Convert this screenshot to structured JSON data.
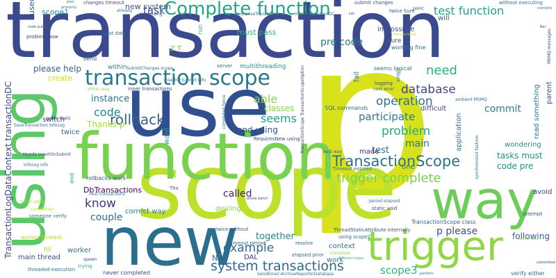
{
  "words": [
    {
      "text": "transaction",
      "color": "#3b4a8c",
      "vertical": false
    },
    {
      "text": "p",
      "color": "#d8e21c",
      "vertical": false
    },
    {
      "text": "scope",
      "color": "#bde02a",
      "vertical": false
    },
    {
      "text": "use",
      "color": "#2f4f8e",
      "vertical": false
    },
    {
      "text": "function",
      "color": "#79d150",
      "vertical": false
    },
    {
      "text": "new",
      "color": "#2b6e8e",
      "vertical": false
    },
    {
      "text": "using",
      "color": "#5cc86a",
      "vertical": true
    },
    {
      "text": "way",
      "color": "#6cce59",
      "vertical": false
    },
    {
      "text": "trigger",
      "color": "#8fd744",
      "vertical": false
    },
    {
      "text": "transaction scope",
      "color": "#2a788e",
      "vertical": false
    },
    {
      "text": "Complete function",
      "color": "#22a784",
      "vertical": false
    },
    {
      "text": "TransactionScope",
      "color": "#2c728e",
      "vertical": false
    },
    {
      "text": "trigger complete",
      "color": "#7ad151",
      "vertical": false
    },
    {
      "text": "system transactions",
      "color": "#31688e",
      "vertical": false
    },
    {
      "text": "TransactionLogDataContext transactionDC",
      "color": "#3e4a89",
      "vertical": true
    },
    {
      "text": "rollback",
      "color": "#35608d",
      "vertical": false
    },
    {
      "text": "database",
      "color": "#3f4788",
      "vertical": false
    },
    {
      "text": "operation",
      "color": "#2c728e",
      "vertical": false
    },
    {
      "text": "problem",
      "color": "#22a884",
      "vertical": false
    },
    {
      "text": "need",
      "color": "#2ab07f",
      "vertical": false
    },
    {
      "text": "know",
      "color": "#46337e",
      "vertical": false
    },
    {
      "text": "code",
      "color": "#24868e",
      "vertical": false
    },
    {
      "text": "able",
      "color": "#87d549",
      "vertical": false
    },
    {
      "text": "seems",
      "color": "#1f9e89",
      "vertical": false
    },
    {
      "text": "participate",
      "color": "#2a788e",
      "vertical": false
    },
    {
      "text": "example",
      "color": "#31688e",
      "vertical": false
    },
    {
      "text": "scope3",
      "color": "#2eb37c",
      "vertical": false
    },
    {
      "text": "task",
      "color": "#3b528b",
      "vertical": false
    },
    {
      "text": "test function",
      "color": "#1fa187",
      "vertical": false
    },
    {
      "text": "pre code",
      "color": "#2a778e",
      "vertical": false
    },
    {
      "text": "commit",
      "color": "#277f8e",
      "vertical": false
    },
    {
      "text": "main",
      "color": "#2c728e",
      "vertical": false
    },
    {
      "text": "test",
      "color": "#2d708e",
      "vertical": false
    },
    {
      "text": "tasks must",
      "color": "#20928c",
      "vertical": false
    },
    {
      "text": "code pre",
      "color": "#21908d",
      "vertical": false
    },
    {
      "text": "p please",
      "color": "#3e4c8a",
      "vertical": false
    },
    {
      "text": "following",
      "color": "#365c8d",
      "vertical": false
    },
    {
      "text": "called",
      "color": "#482475",
      "vertical": false
    },
    {
      "text": "couple",
      "color": "#2d718e",
      "vertical": false
    },
    {
      "text": "together",
      "color": "#25848e",
      "vertical": false
    },
    {
      "text": "instance",
      "color": "#2e6e8e",
      "vertical": false
    },
    {
      "text": "Thanks p",
      "color": "#a8db34",
      "vertical": false
    },
    {
      "text": "classes",
      "color": "#7fd34e",
      "vertical": false
    },
    {
      "text": "end using",
      "color": "#39568c",
      "vertical": false
    },
    {
      "text": "please help",
      "color": "#34618d",
      "vertical": false
    },
    {
      "text": "new system",
      "color": "#3a548c",
      "vertical": false
    },
    {
      "text": "scope1",
      "color": "#24878e",
      "vertical": false
    },
    {
      "text": "must pass",
      "color": "#2fb47c",
      "vertical": false
    },
    {
      "text": "create",
      "color": "#cae11f",
      "vertical": false
    },
    {
      "text": "within",
      "color": "#24878e",
      "vertical": false
    },
    {
      "text": "DbTransactions",
      "color": "#440154",
      "vertical": false
    },
    {
      "text": "rollbacks work",
      "color": "#3b528b",
      "vertical": false
    },
    {
      "text": "correct way",
      "color": "#287d8e",
      "vertical": false
    },
    {
      "text": "dealing",
      "color": "#8bd646",
      "vertical": false
    },
    {
      "text": "context",
      "color": "#2e6e8e",
      "vertical": false
    },
    {
      "text": "Now",
      "color": "#32658e",
      "vertical": false
    },
    {
      "text": "DAL",
      "color": "#453781",
      "vertical": false
    },
    {
      "text": "work",
      "color": "#2a788e",
      "vertical": false
    },
    {
      "text": "worker",
      "color": "#2c738e",
      "vertical": false
    },
    {
      "text": "main thread",
      "color": "#3e4989",
      "vertical": false
    },
    {
      "text": "switch",
      "color": "#433e85",
      "vertical": false
    },
    {
      "text": "twice",
      "color": "#31668e",
      "vertical": false
    },
    {
      "text": "made",
      "color": "#482878",
      "vertical": false
    },
    {
      "text": "one",
      "color": "#2c738e",
      "vertical": false
    },
    {
      "text": "avoid",
      "color": "#443a83",
      "vertical": false
    },
    {
      "text": "fill",
      "color": "#b5de2b",
      "vertical": false
    },
    {
      "text": "wondering",
      "color": "#228b8d",
      "vertical": false
    },
    {
      "text": "application",
      "color": "#2d708e",
      "vertical": true
    },
    {
      "text": "fail",
      "color": "#2a788e",
      "vertical": true
    },
    {
      "text": "difficult",
      "color": "#3e4a89",
      "vertical": false
    },
    {
      "text": "impossible",
      "color": "#3a548c",
      "vertical": false
    },
    {
      "text": "will",
      "color": "#38588c",
      "vertical": false
    },
    {
      "text": "Sure",
      "color": "#34608d",
      "vertical": false
    },
    {
      "text": "working fine",
      "color": "#2a788e",
      "vertical": false
    },
    {
      "text": "SQL commands",
      "color": "#2e6f8e",
      "vertical": false
    },
    {
      "text": "seems logical",
      "color": "#2c738e",
      "vertical": false
    },
    {
      "text": "multithreading",
      "color": "#1f9a8a",
      "vertical": false
    },
    {
      "text": "want",
      "color": "#1e9c89",
      "vertical": true
    },
    {
      "text": "run",
      "color": "#34b679",
      "vertical": true
    },
    {
      "text": "read something",
      "color": "#2a788e",
      "vertical": true
    },
    {
      "text": "parent",
      "color": "#3f4788",
      "vertical": true
    },
    {
      "text": "RequiresNew using",
      "color": "#3e4989",
      "vertical": false
    },
    {
      "text": "Timeout expired",
      "color": "#2c728e",
      "vertical": false
    },
    {
      "text": "TransactionScope class",
      "color": "#32658e",
      "vertical": false
    },
    {
      "text": "using scope2",
      "color": "#2e6e8e",
      "vertical": false
    },
    {
      "text": "ThreadStaticAttribute internally",
      "color": "#3b528b",
      "vertical": false
    },
    {
      "text": "static void",
      "color": "#3e4a89",
      "vertical": false
    },
    {
      "text": "twice without",
      "color": "#3b528b",
      "vertical": false
    },
    {
      "text": "timeout period",
      "color": "#31688e",
      "vertical": false
    },
    {
      "text": "elapsed prior",
      "color": "#2f6b8e",
      "vertical": false
    },
    {
      "text": "never completed",
      "color": "#3e4989",
      "vertical": false
    },
    {
      "text": "threaded execution",
      "color": "#2c738e",
      "vertical": false
    },
    {
      "text": "worker threads",
      "color": "#b5de2b",
      "vertical": false
    },
    {
      "text": "someone verify",
      "color": "#2a788e",
      "vertical": false
    },
    {
      "text": "verify either",
      "color": "#2e6e8e",
      "vertical": false
    },
    {
      "text": "trying",
      "color": "#35b779",
      "vertical": false
    },
    {
      "text": "attempt",
      "color": "#3b528b",
      "vertical": false
    },
    {
      "text": "resolve",
      "color": "#2d708e",
      "vertical": false
    },
    {
      "text": "inner transactions",
      "color": "#443983",
      "vertical": false
    },
    {
      "text": "end",
      "color": "#1f9e89",
      "vertical": true
    },
    {
      "text": "Z T",
      "color": "#6ece58",
      "vertical": false
    },
    {
      "text": "send",
      "color": "#3b528b",
      "vertical": false
    },
    {
      "text": "server",
      "color": "#2c728e",
      "vertical": false
    },
    {
      "text": "Thx",
      "color": "#3e4c8a",
      "vertical": false
    },
    {
      "text": "changes timeout",
      "color": "#3e4a89",
      "vertical": false
    },
    {
      "text": "submit changes",
      "color": "#3b528b",
      "vertical": false
    },
    {
      "text": "without executing",
      "color": "#2c738e",
      "vertical": false
    },
    {
      "text": "twice Sure",
      "color": "#3b528b",
      "vertical": false
    },
    {
      "text": "point",
      "color": "#3e4a89",
      "vertical": false
    },
    {
      "text": "void SaveTransaction",
      "color": "#31688e",
      "vertical": false
    },
    {
      "text": "into transactionDC",
      "color": "#34618d",
      "vertical": false
    },
    {
      "text": "already",
      "color": "#2c738e",
      "vertical": false
    },
    {
      "text": "responding",
      "color": "#3b528b",
      "vertical": false
    },
    {
      "text": "test data",
      "color": "#31688e",
      "vertical": false
    },
    {
      "text": "problem now",
      "color": "#443a83",
      "vertical": false
    },
    {
      "text": "SubmitChanges scope",
      "color": "#2c738e",
      "vertical": false
    },
    {
      "text": "InsertOnSubmit info",
      "color": "#2d708e",
      "vertical": false
    },
    {
      "text": "either way",
      "color": "#9dd93b",
      "vertical": false
    },
    {
      "text": "public static",
      "color": "#3e4989",
      "vertical": false
    },
    {
      "text": "SaveTransaction InfoLog",
      "color": "#31688e",
      "vertical": false
    },
    {
      "text": "MyInfo InsertOnSubmit",
      "color": "#3e4a89",
      "vertical": false
    },
    {
      "text": "InfoLog info",
      "color": "#2c738e",
      "vertical": false
    },
    {
      "text": "completion",
      "color": "#bddf26",
      "vertical": false
    },
    {
      "text": "begin using",
      "color": "#a5db36",
      "vertical": false
    },
    {
      "text": "nest transactions",
      "color": "#2c738e",
      "vertical": false
    },
    {
      "text": "synchronized fashion",
      "color": "#2d708e",
      "vertical": true
    },
    {
      "text": "logging",
      "color": "#3e4a89",
      "vertical": false
    },
    {
      "text": "next error",
      "color": "#3b528b",
      "vertical": false
    },
    {
      "text": "period elapsed",
      "color": "#2c738e",
      "vertical": false
    },
    {
      "text": "best way",
      "color": "#3b528b",
      "vertical": false
    },
    {
      "text": "single",
      "color": "#2a788e",
      "vertical": true
    },
    {
      "text": "transactional",
      "color": "#b5de2b",
      "vertical": false
    },
    {
      "text": "ambient MSMQ",
      "color": "#2d708e",
      "vertical": false
    },
    {
      "text": "MSMQ messages",
      "color": "#3e4989",
      "vertical": true
    },
    {
      "text": "completed twice",
      "color": "#31688e",
      "vertical": true
    },
    {
      "text": "TransactionScope TransactionScopeOption",
      "color": "#3e4a89",
      "vertical": true
    },
    {
      "text": "SendEmail ArchiveReportInDatabase",
      "color": "#2c738e",
      "vertical": false
    },
    {
      "text": "Complete",
      "color": "#8fd744",
      "vertical": false
    },
    {
      "text": "different types",
      "color": "#35b779",
      "vertical": false
    },
    {
      "text": "whole batch",
      "color": "#3b528b",
      "vertical": false
    },
    {
      "text": "spawn",
      "color": "#3e4a89",
      "vertical": false
    },
    {
      "text": "perform",
      "color": "#2a788e",
      "vertical": false
    },
    {
      "text": "commit and",
      "color": "#8bd646",
      "vertical": false
    },
    {
      "text": "committed",
      "color": "#3e4989",
      "vertical": false
    },
    {
      "text": "used",
      "color": "#3b528b",
      "vertical": true
    },
    {
      "text": "plan",
      "color": "#2c738e",
      "vertical": false
    },
    {
      "text": "primarily",
      "color": "#2d708e",
      "vertical": false
    },
    {
      "text": "code public",
      "color": "#31688e",
      "vertical": false
    },
    {
      "text": "scenario",
      "color": "#2c738e",
      "vertical": false
    },
    {
      "text": "Let",
      "color": "#3e4a89",
      "vertical": false
    },
    {
      "text": "Bar",
      "color": "#3b528b",
      "vertical": false
    }
  ]
}
